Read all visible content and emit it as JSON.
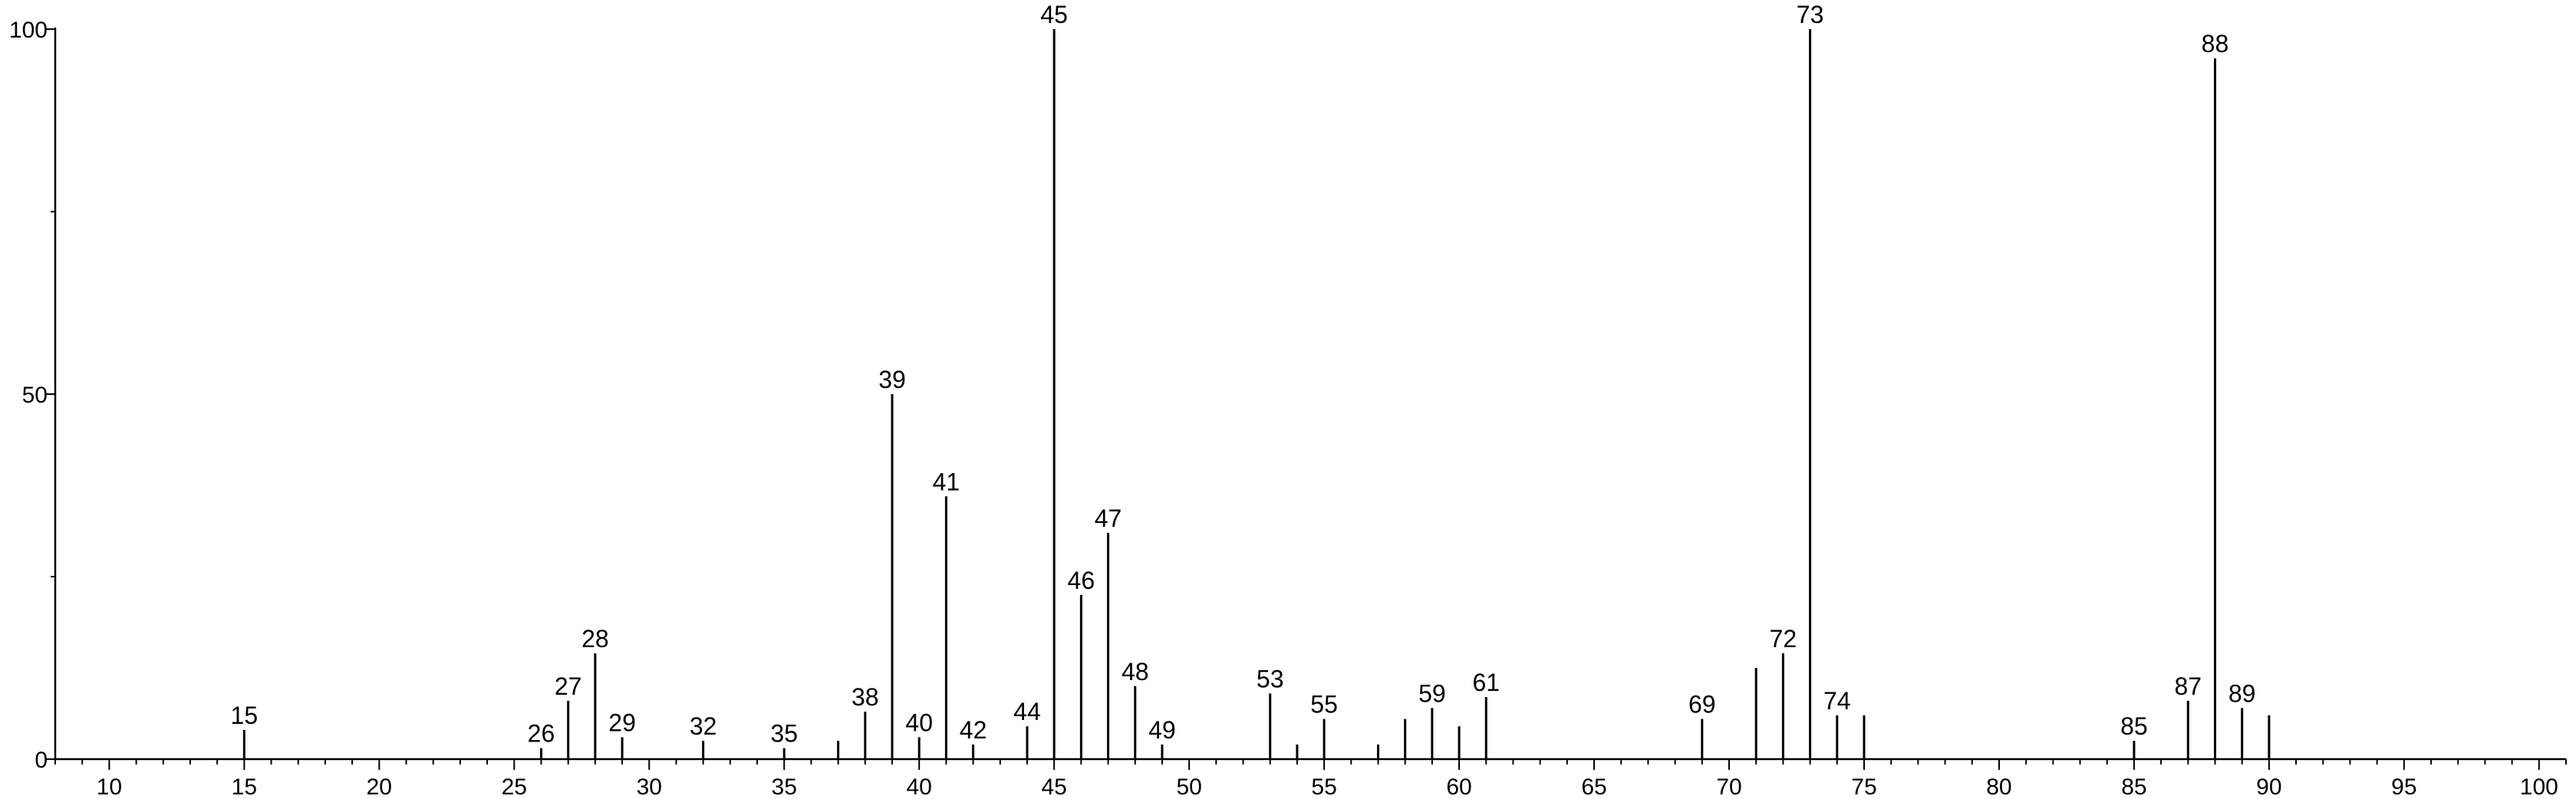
{
  "chart_data": {
    "type": "bar",
    "title": "",
    "xlabel": "",
    "ylabel": "",
    "xlim": [
      8,
      101
    ],
    "ylim": [
      0,
      100
    ],
    "x_ticks": [
      10,
      15,
      20,
      25,
      30,
      35,
      40,
      45,
      50,
      55,
      60,
      65,
      70,
      75,
      80,
      85,
      90,
      95,
      100
    ],
    "y_ticks": [
      0,
      50,
      100
    ],
    "grid": false,
    "peaks": [
      {
        "x": 15,
        "y": 4,
        "label": "15"
      },
      {
        "x": 26,
        "y": 1.5,
        "label": "26"
      },
      {
        "x": 27,
        "y": 8,
        "label": "27"
      },
      {
        "x": 28,
        "y": 14.5,
        "label": "28"
      },
      {
        "x": 29,
        "y": 3,
        "label": "29"
      },
      {
        "x": 32,
        "y": 2.5,
        "label": "32"
      },
      {
        "x": 35,
        "y": 1.5,
        "label": "35"
      },
      {
        "x": 37,
        "y": 2.5,
        "label": ""
      },
      {
        "x": 38,
        "y": 6.5,
        "label": "38"
      },
      {
        "x": 39,
        "y": 50,
        "label": "39"
      },
      {
        "x": 40,
        "y": 3,
        "label": "40"
      },
      {
        "x": 41,
        "y": 36,
        "label": "41"
      },
      {
        "x": 42,
        "y": 2,
        "label": "42"
      },
      {
        "x": 44,
        "y": 4.5,
        "label": "44"
      },
      {
        "x": 45,
        "y": 100,
        "label": "45"
      },
      {
        "x": 46,
        "y": 22.5,
        "label": "46"
      },
      {
        "x": 47,
        "y": 31,
        "label": "47"
      },
      {
        "x": 48,
        "y": 10,
        "label": "48"
      },
      {
        "x": 49,
        "y": 2,
        "label": "49"
      },
      {
        "x": 53,
        "y": 9,
        "label": "53"
      },
      {
        "x": 54,
        "y": 2,
        "label": ""
      },
      {
        "x": 55,
        "y": 5.5,
        "label": "55"
      },
      {
        "x": 57,
        "y": 2,
        "label": ""
      },
      {
        "x": 58,
        "y": 5.5,
        "label": ""
      },
      {
        "x": 59,
        "y": 7,
        "label": "59"
      },
      {
        "x": 60,
        "y": 4.5,
        "label": ""
      },
      {
        "x": 61,
        "y": 8.5,
        "label": "61"
      },
      {
        "x": 69,
        "y": 5.5,
        "label": "69"
      },
      {
        "x": 71,
        "y": 12.5,
        "label": ""
      },
      {
        "x": 72,
        "y": 14.5,
        "label": "72"
      },
      {
        "x": 73,
        "y": 100,
        "label": "73"
      },
      {
        "x": 74,
        "y": 6,
        "label": "74"
      },
      {
        "x": 75,
        "y": 6,
        "label": ""
      },
      {
        "x": 85,
        "y": 2.5,
        "label": "85"
      },
      {
        "x": 87,
        "y": 8,
        "label": "87"
      },
      {
        "x": 88,
        "y": 96,
        "label": "88"
      },
      {
        "x": 89,
        "y": 7,
        "label": "89"
      },
      {
        "x": 90,
        "y": 6,
        "label": ""
      }
    ]
  }
}
